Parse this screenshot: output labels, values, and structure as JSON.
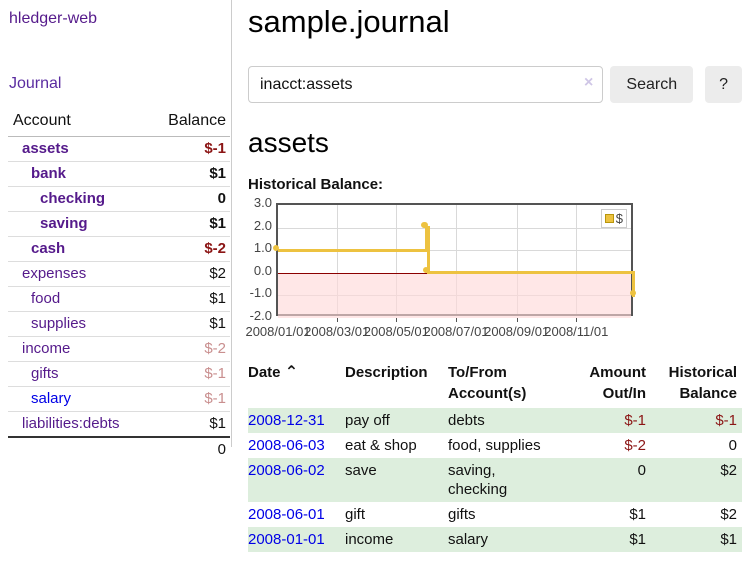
{
  "app": {
    "brand": "hledger-web",
    "nav_journal": "Journal"
  },
  "header": {
    "title": "sample.journal"
  },
  "search": {
    "value": "inacct:assets",
    "clear_icon": "×",
    "button": "Search",
    "help_button": "?"
  },
  "account_page": {
    "heading": "assets",
    "chart_label": "Historical Balance:"
  },
  "sidebar": {
    "col_account": "Account",
    "col_balance": "Balance",
    "total": "0",
    "accounts": [
      {
        "name": "assets",
        "depth": 1,
        "bold": true,
        "balance": "$-1",
        "balance_class": "neg"
      },
      {
        "name": "bank",
        "depth": 2,
        "bold": true,
        "balance": "$1",
        "balance_class": "pos"
      },
      {
        "name": "checking",
        "depth": 3,
        "bold": true,
        "balance": "0",
        "balance_class": "pos"
      },
      {
        "name": "saving",
        "depth": 3,
        "bold": true,
        "balance": "$1",
        "balance_class": "pos"
      },
      {
        "name": "cash",
        "depth": 2,
        "bold": true,
        "balance": "$-2",
        "balance_class": "neg"
      },
      {
        "name": "expenses",
        "depth": 1,
        "bold": false,
        "balance": "$2",
        "balance_class": "pos"
      },
      {
        "name": "food",
        "depth": 2,
        "bold": false,
        "balance": "$1",
        "balance_class": "pos"
      },
      {
        "name": "supplies",
        "depth": 2,
        "bold": false,
        "balance": "$1",
        "balance_class": "pos"
      },
      {
        "name": "income",
        "depth": 1,
        "bold": false,
        "balance": "$-2",
        "balance_class": "neg-dim"
      },
      {
        "name": "gifts",
        "depth": 2,
        "bold": false,
        "balance": "$-1",
        "balance_class": "neg-dim"
      },
      {
        "name": "salary",
        "depth": 2,
        "bold": false,
        "balance": "$-1",
        "balance_class": "neg-dim",
        "link_class": "blue"
      },
      {
        "name": "liabilities:debts",
        "depth": 1,
        "bold": false,
        "balance": "$1",
        "balance_class": "pos"
      }
    ]
  },
  "chart_data": {
    "type": "line",
    "title": "Historical Balance:",
    "step": true,
    "series": [
      {
        "name": "$",
        "color": "#edc240",
        "points": [
          {
            "x": "2008/01/01",
            "y": 1
          },
          {
            "x": "2008/06/01",
            "y": 2
          },
          {
            "x": "2008/06/02",
            "y": 2
          },
          {
            "x": "2008/06/03",
            "y": 0
          },
          {
            "x": "2008/12/31",
            "y": -1
          }
        ]
      }
    ],
    "ylim": [
      -2,
      3
    ],
    "yticks": [
      3.0,
      2.0,
      1.0,
      0.0,
      -1.0,
      -2.0
    ],
    "ytick_labels": [
      "3.0",
      "2.0",
      "1.0",
      "0.0",
      "-1.0",
      "-2.0"
    ],
    "xticks": [
      "2008/01/01",
      "2008/03/01",
      "2008/05/01",
      "2008/07/01",
      "2008/09/01",
      "2008/11/01"
    ],
    "grid": true,
    "legend_position": "top-right",
    "negative_region_color": "#ffd9d9",
    "zero_line_color": "#8b0000"
  },
  "register": {
    "sort_icon": "⌃",
    "columns": [
      {
        "label": "Date"
      },
      {
        "label": "Description"
      },
      {
        "label": "To/From Account(s)"
      },
      {
        "label": "Amount Out/In"
      },
      {
        "label": "Historical Balance"
      }
    ],
    "rows": [
      {
        "date": "2008-12-31",
        "description": "pay off",
        "accounts": "debts",
        "amount": "$-1",
        "balance": "$-1"
      },
      {
        "date": "2008-06-03",
        "description": "eat & shop",
        "accounts": "food, supplies",
        "amount": "$-2",
        "balance": "0"
      },
      {
        "date": "2008-06-02",
        "description": "save",
        "accounts": "saving, checking",
        "amount": "0",
        "balance": "$2"
      },
      {
        "date": "2008-06-01",
        "description": "gift",
        "accounts": "gifts",
        "amount": "$1",
        "balance": "$2"
      },
      {
        "date": "2008-01-01",
        "description": "income",
        "accounts": "salary",
        "amount": "$1",
        "balance": "$1"
      }
    ]
  },
  "colors": {
    "accent_purple": "#551a8b",
    "link_blue": "#0000e6",
    "negative": "#8b1515",
    "negative_dim": "#c98f8f",
    "row_stripe_green": "#ddeedd",
    "chart_line": "#edc240",
    "chart_negative_region": "#ffd9d9",
    "chart_zero_line": "#8b0000"
  }
}
